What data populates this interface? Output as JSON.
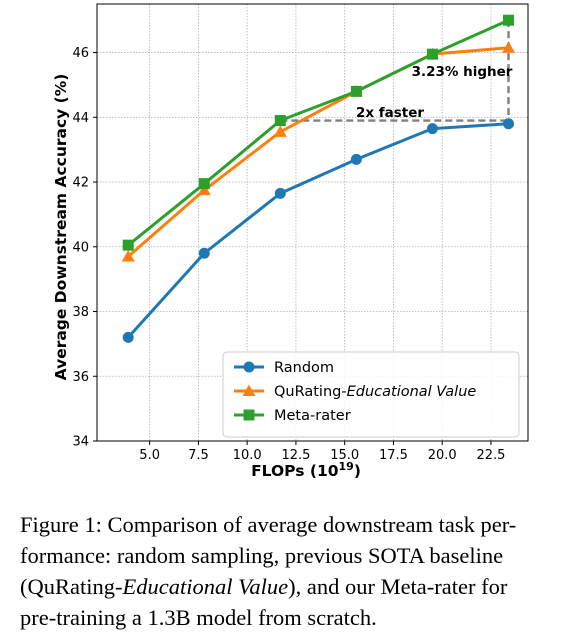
{
  "chart_data": {
    "type": "line",
    "xlabel": "FLOPs (10",
    "xlabel_sup": "19",
    "xlabel_close": ")",
    "ylabel": "Average Downstream Accuracy (%)",
    "xlim": [
      2.3,
      24.4
    ],
    "ylim": [
      34,
      47.5
    ],
    "xticks": [
      5.0,
      7.5,
      10.0,
      12.5,
      15.0,
      17.5,
      20.0,
      22.5
    ],
    "xtick_labels": [
      "5.0",
      "7.5",
      "10.0",
      "12.5",
      "15.0",
      "17.5",
      "20.0",
      "22.5"
    ],
    "yticks": [
      34,
      36,
      38,
      40,
      42,
      44,
      46
    ],
    "ytick_labels": [
      "34",
      "36",
      "38",
      "40",
      "42",
      "44",
      "46"
    ],
    "grid": true,
    "legend_position": "bottom-right",
    "x": [
      3.9,
      7.8,
      11.7,
      15.6,
      19.5,
      23.4
    ],
    "series": [
      {
        "name": "Random",
        "name_italic": "",
        "color": "#1f77b4",
        "marker": "circle",
        "values": [
          37.2,
          39.8,
          41.65,
          42.7,
          43.65,
          43.8
        ]
      },
      {
        "name": "QuRating-",
        "name_italic": "Educational Value",
        "color": "#ff7f0e",
        "marker": "triangle",
        "values": [
          39.7,
          41.75,
          43.55,
          44.8,
          45.95,
          46.15
        ]
      },
      {
        "name": "Meta-rater",
        "name_italic": "",
        "color": "#2ca02c",
        "marker": "square",
        "values": [
          40.05,
          41.95,
          43.9,
          44.8,
          45.95,
          47.0
        ]
      }
    ],
    "annotations": [
      {
        "text": "3.23% higher"
      },
      {
        "text": "2x faster"
      }
    ]
  },
  "caption": {
    "line1": "Figure 1: Comparison of average downstream task per-",
    "line2": "formance: random sampling, previous SOTA baseline",
    "line3_prefix": "(QuRating-",
    "line3_italic": "Educational Value",
    "line3_suffix": "), and our Meta-rater for",
    "line4": "pre-training a 1.3B model from scratch."
  }
}
